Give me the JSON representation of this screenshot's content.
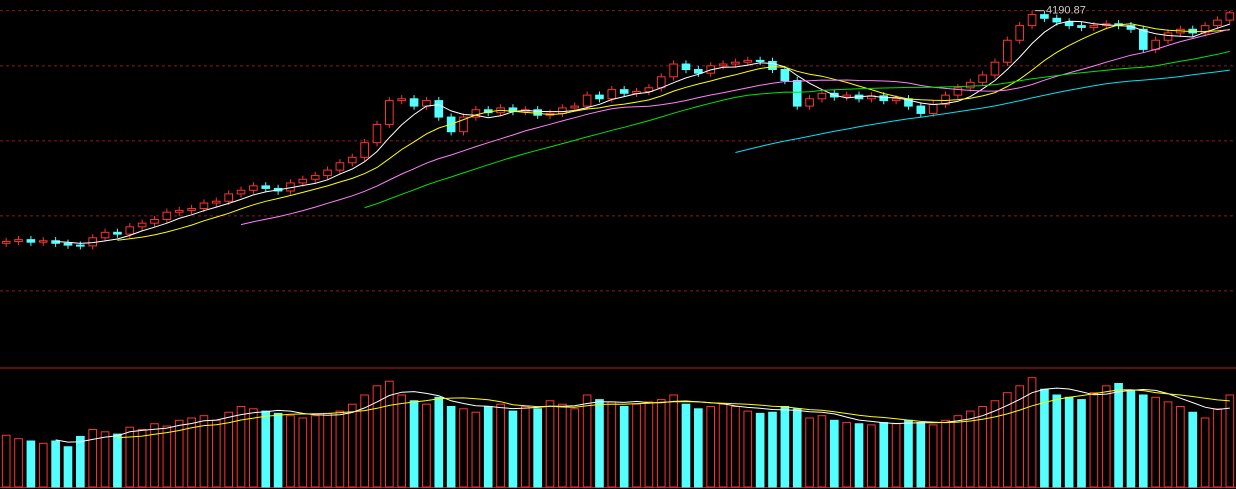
{
  "chart_data": {
    "type": "candlestick",
    "open": [
      3555,
      3560,
      3565,
      3558,
      3562,
      3555,
      3550,
      3548,
      3570,
      3585,
      3580,
      3600,
      3610,
      3620,
      3640,
      3645,
      3650,
      3665,
      3670,
      3690,
      3700,
      3712,
      3705,
      3698,
      3720,
      3730,
      3740,
      3755,
      3775,
      3790,
      3830,
      3880,
      3945,
      3950,
      3930,
      3945,
      3900,
      3860,
      3900,
      3920,
      3912,
      3925,
      3915,
      3920,
      3905,
      3910,
      3925,
      3930,
      3960,
      3950,
      3975,
      3965,
      3970,
      3980,
      4010,
      4045,
      4030,
      4020,
      4040,
      4045,
      4050,
      4055,
      4052,
      4030,
      4000,
      3930,
      3950,
      3965,
      3955,
      3960,
      3950,
      3958,
      3945,
      3950,
      3930,
      3910,
      3935,
      3960,
      3980,
      3995,
      4015,
      4050,
      4110,
      4150,
      4180,
      4170,
      4160,
      4150,
      4145,
      4150,
      4155,
      4150,
      4140,
      4085,
      4110,
      4130,
      4140,
      4130,
      4150,
      4165
    ],
    "high": [
      3570,
      3575,
      3575,
      3572,
      3572,
      3565,
      3560,
      3580,
      3595,
      3595,
      3610,
      3620,
      3630,
      3650,
      3655,
      3660,
      3675,
      3680,
      3700,
      3710,
      3722,
      3722,
      3715,
      3730,
      3740,
      3750,
      3765,
      3785,
      3800,
      3840,
      3890,
      3955,
      3960,
      3960,
      3955,
      3955,
      3910,
      3910,
      3930,
      3930,
      3935,
      3935,
      3930,
      3930,
      3920,
      3935,
      3940,
      3970,
      3970,
      3985,
      3985,
      3980,
      3990,
      4020,
      4055,
      4055,
      4040,
      4050,
      4055,
      4060,
      4065,
      4065,
      4062,
      4040,
      4010,
      3960,
      3975,
      3975,
      3970,
      3970,
      3968,
      3968,
      3960,
      3960,
      3940,
      3945,
      3970,
      3990,
      4005,
      4025,
      4060,
      4120,
      4160,
      4190.87,
      4190,
      4180,
      4170,
      4160,
      4160,
      4165,
      4165,
      4160,
      4150,
      4120,
      4140,
      4150,
      4150,
      4160,
      4175,
      4190
    ],
    "low": [
      3545,
      3550,
      3548,
      3548,
      3545,
      3540,
      3538,
      3538,
      3560,
      3570,
      3570,
      3590,
      3600,
      3610,
      3630,
      3635,
      3640,
      3655,
      3660,
      3680,
      3690,
      3695,
      3688,
      3688,
      3710,
      3720,
      3730,
      3745,
      3765,
      3780,
      3820,
      3870,
      3935,
      3920,
      3920,
      3890,
      3850,
      3850,
      3890,
      3902,
      3902,
      3905,
      3905,
      3895,
      3895,
      3900,
      3915,
      3920,
      3940,
      3940,
      3955,
      3955,
      3960,
      3970,
      4000,
      4020,
      4010,
      4010,
      4030,
      4035,
      4040,
      4042,
      4020,
      3990,
      3920,
      3920,
      3940,
      3945,
      3945,
      3940,
      3940,
      3935,
      3935,
      3920,
      3900,
      3900,
      3925,
      3950,
      3970,
      3985,
      4005,
      4040,
      4100,
      4140,
      4160,
      4150,
      4140,
      4135,
      4135,
      4140,
      4140,
      4130,
      4075,
      4075,
      4100,
      4120,
      4120,
      4120,
      4140,
      4155
    ],
    "close": [
      3560,
      3565,
      3558,
      3562,
      3555,
      3550,
      3548,
      3570,
      3585,
      3580,
      3600,
      3610,
      3620,
      3640,
      3645,
      3650,
      3665,
      3670,
      3690,
      3700,
      3712,
      3705,
      3698,
      3720,
      3730,
      3740,
      3755,
      3775,
      3790,
      3830,
      3880,
      3945,
      3950,
      3930,
      3945,
      3900,
      3860,
      3900,
      3920,
      3912,
      3925,
      3915,
      3920,
      3905,
      3910,
      3925,
      3930,
      3960,
      3950,
      3975,
      3965,
      3970,
      3980,
      4010,
      4045,
      4030,
      4020,
      4040,
      4045,
      4050,
      4055,
      4052,
      4030,
      4000,
      3930,
      3950,
      3965,
      3955,
      3960,
      3950,
      3958,
      3945,
      3950,
      3930,
      3910,
      3935,
      3960,
      3980,
      3995,
      4015,
      4050,
      4110,
      4150,
      4180,
      4170,
      4160,
      4150,
      4145,
      4150,
      4155,
      4150,
      4140,
      4085,
      4110,
      4130,
      4140,
      4130,
      4150,
      4165,
      4185
    ],
    "volume": [
      45,
      42,
      40,
      38,
      40,
      35,
      44,
      50,
      48,
      46,
      52,
      50,
      55,
      53,
      58,
      60,
      62,
      58,
      65,
      70,
      68,
      66,
      64,
      62,
      60,
      62,
      64,
      66,
      72,
      80,
      88,
      92,
      80,
      75,
      72,
      78,
      70,
      68,
      65,
      70,
      72,
      66,
      70,
      68,
      75,
      72,
      68,
      80,
      76,
      74,
      70,
      72,
      74,
      76,
      80,
      72,
      68,
      70,
      72,
      70,
      66,
      64,
      65,
      70,
      68,
      60,
      62,
      58,
      56,
      55,
      54,
      56,
      55,
      58,
      56,
      54,
      58,
      62,
      66,
      70,
      75,
      82,
      88,
      95,
      85,
      80,
      78,
      76,
      82,
      88,
      90,
      84,
      80,
      78,
      74,
      70,
      65,
      60,
      68,
      80
    ],
    "ylim": [
      3400,
      4220
    ],
    "vlim": [
      0,
      100
    ],
    "gridlines": [
      4040,
      3835,
      3630,
      3425
    ],
    "up_color": "#ff3232",
    "down_color": "#54ffff",
    "ma_colors": [
      "#ffffff",
      "#ffff00",
      "#ff80ff",
      "#00e600",
      "#02e2f4"
    ]
  }
}
